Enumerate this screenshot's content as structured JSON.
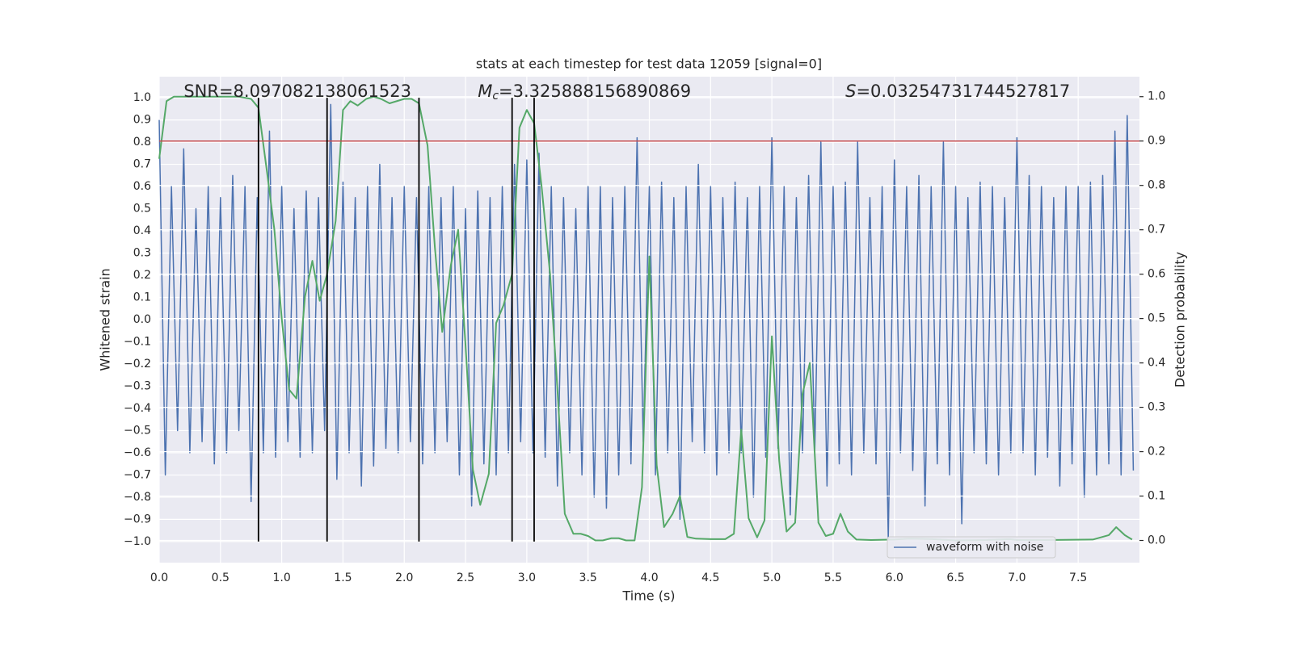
{
  "chart_data": {
    "type": "line",
    "title": "stats at each timestep for test data 12059 [signal=0]",
    "xlabel": "Time (s)",
    "ylabel": "Whitened strain",
    "y2label": "Detection probability",
    "annotations": [
      {
        "x": 0.2,
        "parts": [
          {
            "text": "SNR=8.097082138061523",
            "style": "normal"
          }
        ]
      },
      {
        "x": 2.6,
        "parts": [
          {
            "text": "M",
            "style": "italic"
          },
          {
            "text": "c",
            "style": "italic-sub"
          },
          {
            "text": "=3.325888156890869",
            "style": "normal"
          }
        ]
      },
      {
        "x": 5.6,
        "parts": [
          {
            "text": "S",
            "style": "italic"
          },
          {
            "text": "=0.03254731744527817",
            "style": "normal"
          }
        ]
      }
    ],
    "xlim": [
      0,
      8
    ],
    "ylim": [
      -1.095,
      1.095
    ],
    "y2lim": [
      -0.05,
      1.045
    ],
    "grid": true,
    "legend": "lower right",
    "xticks": [
      {
        "value": 0,
        "label": "0.0"
      },
      {
        "value": 0.5,
        "label": "0.5"
      },
      {
        "value": 1,
        "label": "1.0"
      },
      {
        "value": 1.5,
        "label": "1.5"
      },
      {
        "value": 2,
        "label": "2.0"
      },
      {
        "value": 2.5,
        "label": "2.5"
      },
      {
        "value": 3,
        "label": "3.0"
      },
      {
        "value": 3.5,
        "label": "3.5"
      },
      {
        "value": 4,
        "label": "4.0"
      },
      {
        "value": 4.5,
        "label": "4.5"
      },
      {
        "value": 5,
        "label": "5.0"
      },
      {
        "value": 5.5,
        "label": "5.5"
      },
      {
        "value": 6,
        "label": "6.0"
      },
      {
        "value": 6.5,
        "label": "6.5"
      },
      {
        "value": 7,
        "label": "7.0"
      },
      {
        "value": 7.5,
        "label": "7.5"
      }
    ],
    "yticks": [
      {
        "value": -1,
        "label": "−1.0"
      },
      {
        "value": -0.9,
        "label": "−0.9"
      },
      {
        "value": -0.8,
        "label": "−0.8"
      },
      {
        "value": -0.7,
        "label": "−0.7"
      },
      {
        "value": -0.6,
        "label": "−0.6"
      },
      {
        "value": -0.5,
        "label": "−0.5"
      },
      {
        "value": -0.4,
        "label": "−0.4"
      },
      {
        "value": -0.3,
        "label": "−0.3"
      },
      {
        "value": -0.2,
        "label": "−0.2"
      },
      {
        "value": -0.1,
        "label": "−0.1"
      },
      {
        "value": 0,
        "label": "0.0"
      },
      {
        "value": 0.1,
        "label": "0.1"
      },
      {
        "value": 0.2,
        "label": "0.2"
      },
      {
        "value": 0.3,
        "label": "0.3"
      },
      {
        "value": 0.4,
        "label": "0.4"
      },
      {
        "value": 0.5,
        "label": "0.5"
      },
      {
        "value": 0.6,
        "label": "0.6"
      },
      {
        "value": 0.7,
        "label": "0.7"
      },
      {
        "value": 0.8,
        "label": "0.8"
      },
      {
        "value": 0.9,
        "label": "0.9"
      },
      {
        "value": 1,
        "label": "1.0"
      }
    ],
    "y2ticks": [
      {
        "value": 0,
        "label": "0.0"
      },
      {
        "value": 0.1,
        "label": "0.1"
      },
      {
        "value": 0.2,
        "label": "0.2"
      },
      {
        "value": 0.3,
        "label": "0.3"
      },
      {
        "value": 0.4,
        "label": "0.4"
      },
      {
        "value": 0.5,
        "label": "0.5"
      },
      {
        "value": 0.6,
        "label": "0.6"
      },
      {
        "value": 0.7,
        "label": "0.7"
      },
      {
        "value": 0.8,
        "label": "0.8"
      },
      {
        "value": 0.9,
        "label": "0.9"
      },
      {
        "value": 1,
        "label": "1.0"
      }
    ],
    "vlines": {
      "x": [
        0.81,
        1.37,
        2.12,
        2.88,
        3.06
      ],
      "range": [
        -1,
        1
      ],
      "color": "#000000"
    },
    "hline": {
      "value": 0.9,
      "axis": "y2",
      "color": "#c44e52"
    },
    "series": [
      {
        "name": "waveform with noise",
        "color": "#4c72b0",
        "axis": "y",
        "x": [
          0,
          0.05,
          0.1,
          0.15,
          0.2,
          0.25,
          0.3,
          0.35,
          0.4,
          0.45,
          0.5,
          0.55,
          0.6,
          0.65,
          0.7,
          0.75,
          0.8,
          0.85,
          0.9,
          0.95,
          1,
          1.05,
          1.1,
          1.15,
          1.2,
          1.25,
          1.3,
          1.35,
          1.4,
          1.45,
          1.5,
          1.55,
          1.6,
          1.65,
          1.7,
          1.75,
          1.8,
          1.85,
          1.9,
          1.95,
          2,
          2.05,
          2.1,
          2.15,
          2.2,
          2.25,
          2.3,
          2.35,
          2.4,
          2.45,
          2.5,
          2.55,
          2.6,
          2.65,
          2.7,
          2.75,
          2.8,
          2.85,
          2.9,
          2.95,
          3,
          3.05,
          3.1,
          3.15,
          3.2,
          3.25,
          3.3,
          3.35,
          3.4,
          3.45,
          3.5,
          3.55,
          3.6,
          3.65,
          3.7,
          3.75,
          3.8,
          3.85,
          3.9,
          3.95,
          4,
          4.05,
          4.1,
          4.15,
          4.2,
          4.25,
          4.3,
          4.35,
          4.4,
          4.45,
          4.5,
          4.55,
          4.6,
          4.65,
          4.7,
          4.75,
          4.8,
          4.85,
          4.9,
          4.95,
          5,
          5.05,
          5.1,
          5.15,
          5.2,
          5.25,
          5.3,
          5.35,
          5.4,
          5.45,
          5.5,
          5.55,
          5.6,
          5.65,
          5.7,
          5.75,
          5.8,
          5.85,
          5.9,
          5.95,
          6,
          6.05,
          6.1,
          6.15,
          6.2,
          6.25,
          6.3,
          6.35,
          6.4,
          6.45,
          6.5,
          6.55,
          6.6,
          6.65,
          6.7,
          6.75,
          6.8,
          6.85,
          6.9,
          6.95,
          7,
          7.05,
          7.1,
          7.15,
          7.2,
          7.25,
          7.3,
          7.35,
          7.4,
          7.45,
          7.5,
          7.55,
          7.6,
          7.65,
          7.7,
          7.75,
          7.8,
          7.85,
          7.9,
          7.95
        ],
        "values": [
          0.9,
          -0.7,
          0.6,
          -0.5,
          0.77,
          -0.6,
          0.5,
          -0.55,
          0.6,
          -0.65,
          0.55,
          -0.6,
          0.65,
          -0.5,
          0.6,
          -0.82,
          0.55,
          -0.6,
          0.85,
          -0.62,
          0.6,
          -0.55,
          0.5,
          -0.62,
          0.58,
          -0.6,
          0.55,
          -0.5,
          0.97,
          -0.72,
          0.62,
          -0.6,
          0.55,
          -0.75,
          0.6,
          -0.66,
          0.7,
          -0.58,
          0.55,
          -0.6,
          0.6,
          -0.55,
          0.55,
          -0.65,
          0.6,
          -0.6,
          0.55,
          -0.55,
          0.6,
          -0.7,
          0.5,
          -0.84,
          0.58,
          -0.65,
          0.55,
          -0.7,
          0.6,
          -0.6,
          0.7,
          -0.55,
          0.72,
          -0.6,
          0.75,
          -0.62,
          0.6,
          -0.75,
          0.55,
          -0.6,
          0.5,
          -0.7,
          0.6,
          -0.8,
          0.6,
          -0.85,
          0.55,
          -0.7,
          0.6,
          -0.65,
          0.82,
          -0.55,
          0.6,
          -0.7,
          0.62,
          -0.6,
          0.55,
          -0.9,
          0.6,
          -0.55,
          0.7,
          -0.6,
          0.6,
          -0.7,
          0.55,
          -0.6,
          0.62,
          -0.6,
          0.55,
          -0.8,
          0.6,
          -0.62,
          0.82,
          -0.58,
          0.6,
          -0.88,
          0.55,
          -0.6,
          0.65,
          -0.6,
          0.8,
          -0.75,
          0.6,
          -0.65,
          0.62,
          -0.7,
          0.8,
          -0.6,
          0.55,
          -0.65,
          0.6,
          -0.99,
          0.72,
          -0.6,
          0.6,
          -0.68,
          0.65,
          -0.84,
          0.6,
          -0.65,
          0.8,
          -0.7,
          0.6,
          -0.92,
          0.55,
          -0.6,
          0.62,
          -0.65,
          0.6,
          -0.7,
          0.55,
          -0.6,
          0.82,
          -0.6,
          0.65,
          -0.7,
          0.6,
          -0.62,
          0.55,
          -0.75,
          0.6,
          -0.65,
          0.6,
          -0.8,
          0.62,
          -0.7,
          0.65,
          -0.65,
          0.85,
          -0.7,
          0.92,
          -0.68
        ]
      },
      {
        "name": "detection probability",
        "color": "#55a868",
        "axis": "y2",
        "legend": false,
        "x": [
          0,
          0.06,
          0.12,
          0.3,
          0.5,
          0.65,
          0.75,
          0.81,
          0.88,
          0.94,
          1,
          1.06,
          1.12,
          1.19,
          1.25,
          1.31,
          1.37,
          1.44,
          1.5,
          1.56,
          1.62,
          1.69,
          1.75,
          1.81,
          1.88,
          1.94,
          2,
          2.06,
          2.12,
          2.19,
          2.25,
          2.31,
          2.38,
          2.44,
          2.5,
          2.56,
          2.62,
          2.69,
          2.75,
          2.81,
          2.88,
          2.94,
          3,
          3.06,
          3.12,
          3.19,
          3.25,
          3.31,
          3.38,
          3.44,
          3.5,
          3.56,
          3.62,
          3.69,
          3.75,
          3.81,
          3.88,
          3.94,
          4,
          4.06,
          4.12,
          4.19,
          4.25,
          4.31,
          4.38,
          4.5,
          4.62,
          4.69,
          4.75,
          4.81,
          4.88,
          4.94,
          5,
          5.06,
          5.12,
          5.19,
          5.25,
          5.31,
          5.38,
          5.44,
          5.5,
          5.56,
          5.62,
          5.69,
          5.81,
          6,
          6.12,
          6.31,
          6.5,
          6.75,
          6.94,
          7,
          7.25,
          7.62,
          7.75,
          7.81,
          7.88,
          7.94
        ],
        "values": [
          0.86,
          0.99,
          1,
          1,
          1,
          1,
          0.995,
          0.975,
          0.83,
          0.7,
          0.5,
          0.34,
          0.32,
          0.55,
          0.63,
          0.54,
          0.6,
          0.72,
          0.97,
          0.99,
          0.98,
          0.995,
          1,
          0.995,
          0.985,
          0.99,
          0.995,
          0.995,
          0.985,
          0.89,
          0.66,
          0.47,
          0.62,
          0.7,
          0.44,
          0.16,
          0.08,
          0.15,
          0.49,
          0.53,
          0.6,
          0.93,
          0.97,
          0.94,
          0.8,
          0.6,
          0.34,
          0.06,
          0.015,
          0.015,
          0.01,
          0,
          0,
          0.005,
          0.005,
          0,
          0,
          0.12,
          0.64,
          0.17,
          0.03,
          0.06,
          0.1,
          0.008,
          0.004,
          0.003,
          0.003,
          0.015,
          0.25,
          0.05,
          0.007,
          0.045,
          0.46,
          0.18,
          0.02,
          0.04,
          0.33,
          0.4,
          0.04,
          0.01,
          0.015,
          0.06,
          0.02,
          0.002,
          0.001,
          0.002,
          0.004,
          0.003,
          0,
          0.001,
          0.003,
          0.001,
          0.001,
          0.002,
          0.012,
          0.03,
          0.012,
          0.002
        ]
      }
    ]
  }
}
